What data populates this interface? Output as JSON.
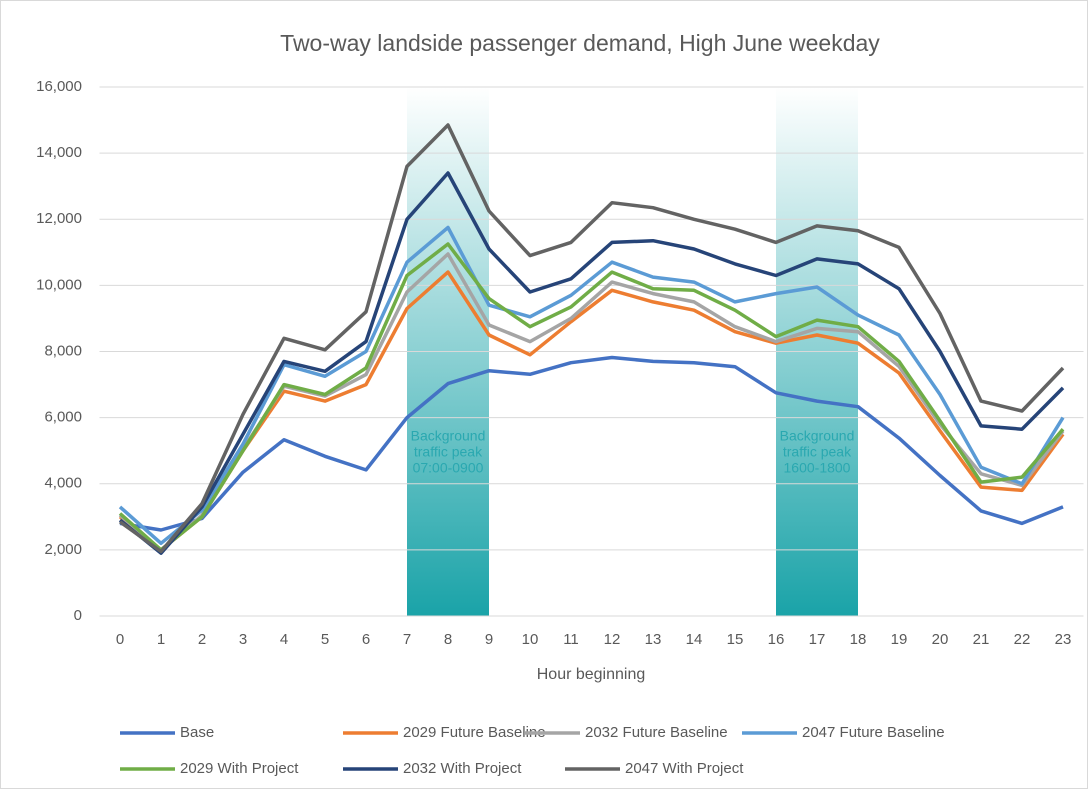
{
  "chart_data": {
    "type": "line",
    "title": "Two-way landside passenger demand, High June weekday",
    "x_label": "Hour beginning",
    "categories": [
      "0",
      "1",
      "2",
      "3",
      "4",
      "5",
      "6",
      "7",
      "8",
      "9",
      "10",
      "11",
      "12",
      "13",
      "14",
      "15",
      "16",
      "17",
      "18",
      "19",
      "20",
      "21",
      "22",
      "23"
    ],
    "ylim": [
      0,
      16000
    ],
    "yticks": [
      0,
      {
        "value": 2000,
        "label": "2,000"
      },
      {
        "value": 4000,
        "label": "4,000"
      },
      {
        "value": 6000,
        "label": "6,000"
      },
      {
        "value": 8000,
        "label": "8,000"
      },
      {
        "value": 10000,
        "label": "10,000"
      },
      {
        "value": 12000,
        "label": "12,000"
      },
      {
        "value": 14000,
        "label": "14,000"
      },
      {
        "value": 16000,
        "label": "16,000"
      }
    ],
    "grid": true,
    "legend": "bottom",
    "bands": [
      {
        "from": 7,
        "to": 9,
        "color": "#1aa3a8",
        "label": [
          "Background",
          "traffic peak",
          "07:00-0900"
        ]
      },
      {
        "from": 16,
        "to": 18,
        "color": "#1aa3a8",
        "label": [
          "Background",
          "traffic peak",
          "1600-1800"
        ]
      }
    ],
    "series": [
      {
        "name": "Base",
        "color": "#4472c4",
        "values": [
          2800,
          2600,
          2950,
          4350,
          5330,
          4830,
          4420,
          6000,
          7030,
          7420,
          7310,
          7660,
          7820,
          7700,
          7660,
          7540,
          6750,
          6500,
          6330,
          5380,
          4250,
          3180,
          2800,
          3300
        ]
      },
      {
        "name": "2029 Future Baseline",
        "color": "#ed7d31",
        "values": [
          3000,
          2000,
          3000,
          5000,
          6800,
          6500,
          7000,
          9300,
          10400,
          8500,
          7900,
          8900,
          9850,
          9500,
          9250,
          8600,
          8250,
          8500,
          8250,
          7350,
          5600,
          3900,
          3800,
          5500
        ]
      },
      {
        "name": "2032 Future Baseline",
        "color": "#a5a5a5",
        "values": [
          3050,
          2000,
          3050,
          5050,
          6950,
          6650,
          7300,
          9800,
          10950,
          8800,
          8300,
          9000,
          10100,
          9750,
          9500,
          8750,
          8300,
          8700,
          8600,
          7550,
          5800,
          4300,
          3950,
          5600
        ]
      },
      {
        "name": "2047 Future Baseline",
        "color": "#5b9bd5",
        "values": [
          3300,
          2200,
          3200,
          5200,
          7600,
          7250,
          8000,
          10700,
          11750,
          9400,
          9050,
          9700,
          10700,
          10250,
          10100,
          9500,
          9750,
          9950,
          9100,
          8500,
          6700,
          4500,
          4000,
          6000
        ]
      },
      {
        "name": "2029 With Project",
        "color": "#70ad47",
        "values": [
          3100,
          2000,
          3000,
          5000,
          7000,
          6700,
          7500,
          10300,
          11250,
          9600,
          8750,
          9350,
          10400,
          9900,
          9850,
          9250,
          8450,
          8950,
          8750,
          7700,
          5900,
          4050,
          4200,
          5650
        ]
      },
      {
        "name": "2032 With Project",
        "color": "#264478",
        "values": [
          2900,
          1900,
          3300,
          5500,
          7700,
          7400,
          8300,
          12000,
          13400,
          11100,
          9800,
          10200,
          11300,
          11350,
          11100,
          10650,
          10300,
          10800,
          10650,
          9900,
          8000,
          5750,
          5650,
          6900
        ]
      },
      {
        "name": "2047 With Project",
        "color": "#636363",
        "values": [
          2850,
          1950,
          3400,
          6100,
          8400,
          8050,
          9200,
          13600,
          14850,
          12250,
          10900,
          11300,
          12500,
          12350,
          12000,
          11700,
          11300,
          11800,
          11650,
          11150,
          9150,
          6500,
          6200,
          7500
        ]
      }
    ]
  }
}
